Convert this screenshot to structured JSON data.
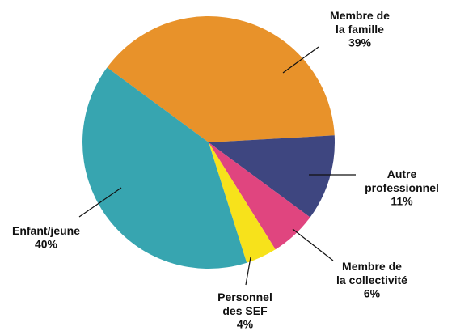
{
  "chart_data": {
    "type": "pie",
    "categories": [
      "Membre de\nla famille",
      "Autre\nprofessionnel",
      "Membre de\nla collectivité",
      "Personnel\ndes SEF",
      "Enfant/jeune"
    ],
    "values": [
      39,
      11,
      6,
      4,
      40
    ],
    "value_labels": [
      "39%",
      "11%",
      "6%",
      "4%",
      "40%"
    ],
    "colors": [
      "#e8922a",
      "#3e4680",
      "#e0457f",
      "#f7e21b",
      "#37a5b0"
    ]
  }
}
